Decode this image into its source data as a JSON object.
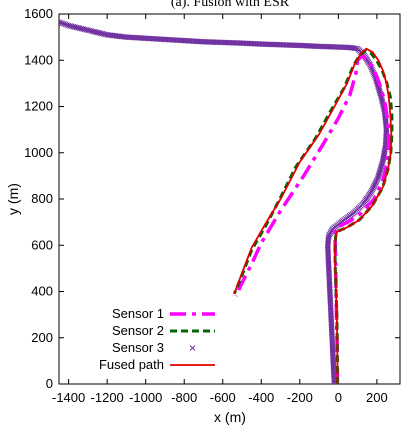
{
  "chart_data": {
    "type": "line",
    "title": "(a). Fusion with ESR",
    "xlabel": "x (m)",
    "ylabel": "y (m)",
    "xlim": [
      -1450,
      320
    ],
    "ylim": [
      0,
      1600
    ],
    "xticks": [
      -1400,
      -1200,
      -1000,
      -800,
      -600,
      -400,
      -200,
      0,
      200
    ],
    "yticks": [
      0,
      200,
      400,
      600,
      800,
      1000,
      1200,
      1400,
      1600
    ],
    "grid": false,
    "legend_position": "bottom-left",
    "series": [
      {
        "name": "Sensor 1",
        "style": "dash-dot",
        "color": "#ff00ff",
        "x": [
          -5,
          -5,
          -6,
          -8,
          -10,
          -12,
          -14,
          -16,
          -18,
          -14,
          -10,
          0,
          60,
          120,
          185,
          230,
          255,
          262,
          258,
          245,
          228,
          205,
          178,
          150,
          125,
          100,
          90,
          60,
          0,
          -70,
          -180,
          -300,
          -400,
          -450,
          -510,
          -530
        ],
        "y": [
          0,
          80,
          150,
          230,
          320,
          420,
          520,
          600,
          650,
          670,
          675,
          680,
          705,
          740,
          800,
          880,
          960,
          1050,
          1130,
          1200,
          1260,
          1320,
          1370,
          1400,
          1420,
          1400,
          1340,
          1250,
          1150,
          1050,
          900,
          750,
          610,
          520,
          420,
          380
        ]
      },
      {
        "name": "Sensor 2",
        "style": "dashed",
        "color": "#006400",
        "x": [
          -5,
          -5,
          -6,
          -8,
          -12,
          -16,
          -18,
          -14,
          -5,
          40,
          110,
          175,
          230,
          258,
          272,
          278,
          278,
          270,
          252,
          228,
          198,
          170,
          140,
          110,
          80,
          30,
          -40,
          -120,
          -220,
          -310,
          -380,
          -450,
          -500,
          -540
        ],
        "y": [
          0,
          100,
          200,
          300,
          400,
          500,
          580,
          640,
          660,
          675,
          710,
          770,
          850,
          930,
          1000,
          1080,
          1160,
          1240,
          1300,
          1355,
          1400,
          1430,
          1440,
          1420,
          1380,
          1280,
          1180,
          1060,
          940,
          790,
          680,
          580,
          470,
          390
        ]
      },
      {
        "name": "Sensor 3",
        "style": "markers",
        "color": "#7030a0",
        "x": [
          -1450,
          -1400,
          -1300,
          -1200,
          -1100,
          -1000,
          -900,
          -800,
          -700,
          -600,
          -500,
          -400,
          -300,
          -200,
          -100,
          0,
          60,
          100,
          135,
          165,
          195,
          220,
          240,
          250,
          245,
          230,
          205,
          170,
          130,
          80,
          30,
          -30,
          -50,
          -55,
          -52,
          -48,
          -44,
          -40,
          -36,
          -32,
          -28,
          -24,
          -20
        ],
        "y": [
          1565,
          1550,
          1530,
          1510,
          1500,
          1495,
          1490,
          1485,
          1480,
          1477,
          1474,
          1470,
          1467,
          1464,
          1460,
          1457,
          1455,
          1450,
          1420,
          1380,
          1320,
          1250,
          1180,
          1100,
          1030,
          960,
          890,
          830,
          780,
          740,
          710,
          670,
          640,
          600,
          540,
          470,
          400,
          330,
          260,
          190,
          120,
          50,
          0
        ]
      },
      {
        "name": "Fused path",
        "style": "solid",
        "color": "#e00000",
        "x": [
          -5,
          -5,
          -6,
          -8,
          -12,
          -16,
          -18,
          -14,
          -5,
          40,
          110,
          175,
          230,
          258,
          272,
          275,
          270,
          262,
          250,
          232,
          208,
          178,
          145,
          118,
          88,
          45,
          -20,
          -100,
          -200,
          -300,
          -380,
          -450,
          -500,
          -540
        ],
        "y": [
          0,
          100,
          200,
          300,
          400,
          500,
          580,
          640,
          660,
          675,
          710,
          770,
          850,
          930,
          1000,
          1080,
          1160,
          1240,
          1300,
          1355,
          1400,
          1435,
          1450,
          1430,
          1390,
          1300,
          1200,
          1080,
          960,
          800,
          690,
          590,
          480,
          390
        ]
      }
    ]
  }
}
